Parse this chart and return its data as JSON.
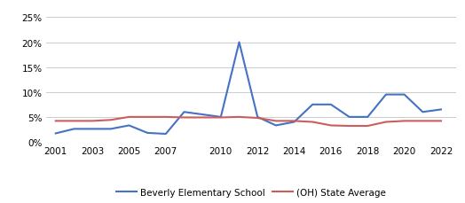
{
  "school_years": [
    2001,
    2002,
    2003,
    2004,
    2005,
    2006,
    2007,
    2008,
    2009,
    2010,
    2011,
    2012,
    2013,
    2014,
    2015,
    2016,
    2017,
    2018,
    2019,
    2020,
    2021,
    2022
  ],
  "school_values": [
    0.017,
    0.026,
    0.026,
    0.026,
    0.033,
    0.018,
    0.016,
    0.06,
    0.055,
    0.05,
    0.2,
    0.05,
    0.033,
    0.04,
    0.075,
    0.075,
    0.05,
    0.05,
    0.095,
    0.095,
    0.06,
    0.065
  ],
  "state_years": [
    2001,
    2002,
    2003,
    2004,
    2005,
    2006,
    2007,
    2008,
    2009,
    2010,
    2011,
    2012,
    2013,
    2014,
    2015,
    2016,
    2017,
    2018,
    2019,
    2020,
    2021,
    2022
  ],
  "state_values": [
    0.042,
    0.042,
    0.042,
    0.044,
    0.05,
    0.05,
    0.05,
    0.049,
    0.049,
    0.049,
    0.05,
    0.048,
    0.042,
    0.042,
    0.04,
    0.033,
    0.032,
    0.032,
    0.04,
    0.042,
    0.042,
    0.042
  ],
  "school_color": "#4472C4",
  "state_color": "#CD5C5C",
  "school_label": "Beverly Elementary School",
  "state_label": "(OH) State Average",
  "xticks": [
    2001,
    2003,
    2005,
    2007,
    2010,
    2012,
    2014,
    2016,
    2018,
    2020,
    2022
  ],
  "yticks": [
    0.0,
    0.05,
    0.1,
    0.15,
    0.2,
    0.25
  ],
  "ylim": [
    0.0,
    0.27
  ],
  "xlim": [
    2000.5,
    2022.8
  ],
  "bg_color": "#ffffff",
  "grid_color": "#cccccc",
  "line_width": 1.5,
  "tick_fontsize": 7.5,
  "legend_fontsize": 7.5
}
